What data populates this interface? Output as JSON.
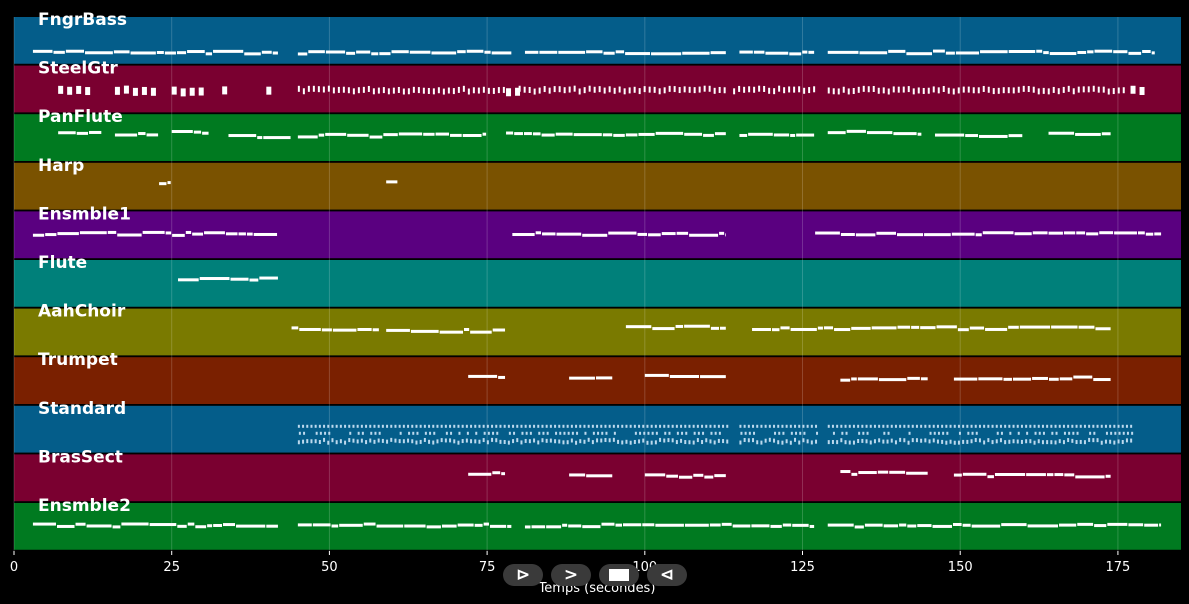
{
  "chart_data": {
    "type": "piano-roll",
    "xlabel": "Temps (secondes)",
    "xlim": [
      0,
      185
    ],
    "xticks": [
      0,
      25,
      50,
      75,
      100,
      125,
      150,
      175
    ],
    "grid": true,
    "tracks": [
      {
        "name": "FngrBass",
        "color": "#045d8a",
        "style": "lines",
        "segments": [
          [
            3,
            42
          ],
          [
            45,
            79
          ],
          [
            81,
            113
          ],
          [
            115,
            127
          ],
          [
            129,
            181
          ]
        ]
      },
      {
        "name": "SteelGtr",
        "color": "#7a0030",
        "style": "dashes",
        "segments": [
          [
            7,
            12
          ],
          [
            16,
            22
          ],
          [
            25,
            30
          ],
          [
            33,
            34
          ],
          [
            40,
            41
          ],
          [
            45,
            78
          ],
          [
            78,
            80
          ],
          [
            80,
            113
          ],
          [
            114,
            127
          ],
          [
            129,
            176
          ],
          [
            177,
            179
          ]
        ]
      },
      {
        "name": "PanFlute",
        "color": "#007a20",
        "style": "lines",
        "segments": [
          [
            7,
            14
          ],
          [
            16,
            23
          ],
          [
            25,
            31
          ],
          [
            34,
            44
          ],
          [
            45,
            61
          ],
          [
            61,
            75
          ],
          [
            78,
            95
          ],
          [
            95,
            113
          ],
          [
            115,
            127
          ],
          [
            129,
            144
          ],
          [
            146,
            160
          ],
          [
            164,
            174
          ]
        ]
      },
      {
        "name": "Harp",
        "color": "#7a5200",
        "style": "lines",
        "segments": [
          [
            23,
            25
          ],
          [
            59,
            61
          ]
        ]
      },
      {
        "name": "Ensmble1",
        "color": "#5a0080",
        "style": "lines",
        "segments": [
          [
            3,
            42
          ],
          [
            79,
            113
          ],
          [
            127,
            182
          ]
        ]
      },
      {
        "name": "Flute",
        "color": "#00807a",
        "style": "lines",
        "segments": [
          [
            26,
            42
          ]
        ]
      },
      {
        "name": "AahChoir",
        "color": "#7a7a00",
        "style": "lines",
        "segments": [
          [
            44,
            58
          ],
          [
            59,
            78
          ],
          [
            97,
            113
          ],
          [
            117,
            130
          ],
          [
            130,
            174
          ]
        ]
      },
      {
        "name": "Trumpet",
        "color": "#7a2000",
        "style": "lines",
        "segments": [
          [
            72,
            78
          ],
          [
            88,
            95
          ],
          [
            100,
            113
          ],
          [
            131,
            145
          ],
          [
            149,
            174
          ]
        ]
      },
      {
        "name": "Standard",
        "color": "#045d8a",
        "style": "dots",
        "segments": [
          [
            45,
            113
          ],
          [
            115,
            127
          ],
          [
            129,
            177
          ]
        ]
      },
      {
        "name": "BrasSect",
        "color": "#7a0030",
        "style": "lines",
        "segments": [
          [
            72,
            78
          ],
          [
            88,
            95
          ],
          [
            100,
            113
          ],
          [
            131,
            145
          ],
          [
            149,
            174
          ]
        ]
      },
      {
        "name": "Ensmble2",
        "color": "#007a20",
        "style": "lines",
        "segments": [
          [
            3,
            42
          ],
          [
            45,
            79
          ],
          [
            81,
            127
          ],
          [
            129,
            182
          ]
        ]
      }
    ]
  },
  "controls": {
    "prev_label": "⊳",
    "play_label": ">",
    "next_label": "⊲"
  }
}
